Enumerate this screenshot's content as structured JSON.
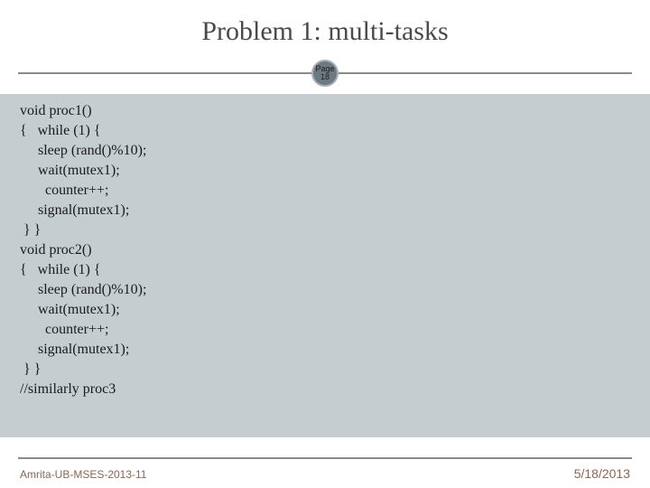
{
  "slide": {
    "title": "Problem 1: multi-tasks",
    "page_badge": {
      "label": "Page",
      "number": "18"
    },
    "code_lines": [
      "void proc1()",
      "{   while (1) {",
      "     sleep (rand()%10);",
      "     wait(mutex1);",
      "       counter++;",
      "     signal(mutex1);",
      " } }",
      "void proc2()",
      "{   while (1) {",
      "     sleep (rand()%10);",
      "     wait(mutex1);",
      "       counter++;",
      "     signal(mutex1);",
      " } }",
      "//similarly proc3"
    ],
    "footer": {
      "left": "Amrita-UB-MSES-2013-11",
      "right": "5/18/2013"
    }
  },
  "style": {
    "background_color": "#ffffff",
    "content_background": "#c5cdd1",
    "title_color": "#4a4a4a",
    "title_fontsize": 30,
    "divider_color": "#8a8a8a",
    "badge_bg": "#6e7a82",
    "badge_border": "#a8b0b6",
    "code_color": "#1a1a1a",
    "code_fontsize": 16,
    "footer_color": "#8a6555",
    "footer_left_fontsize": 12,
    "footer_right_fontsize": 14,
    "font_family_title": "Georgia",
    "font_family_footer": "Arial"
  }
}
